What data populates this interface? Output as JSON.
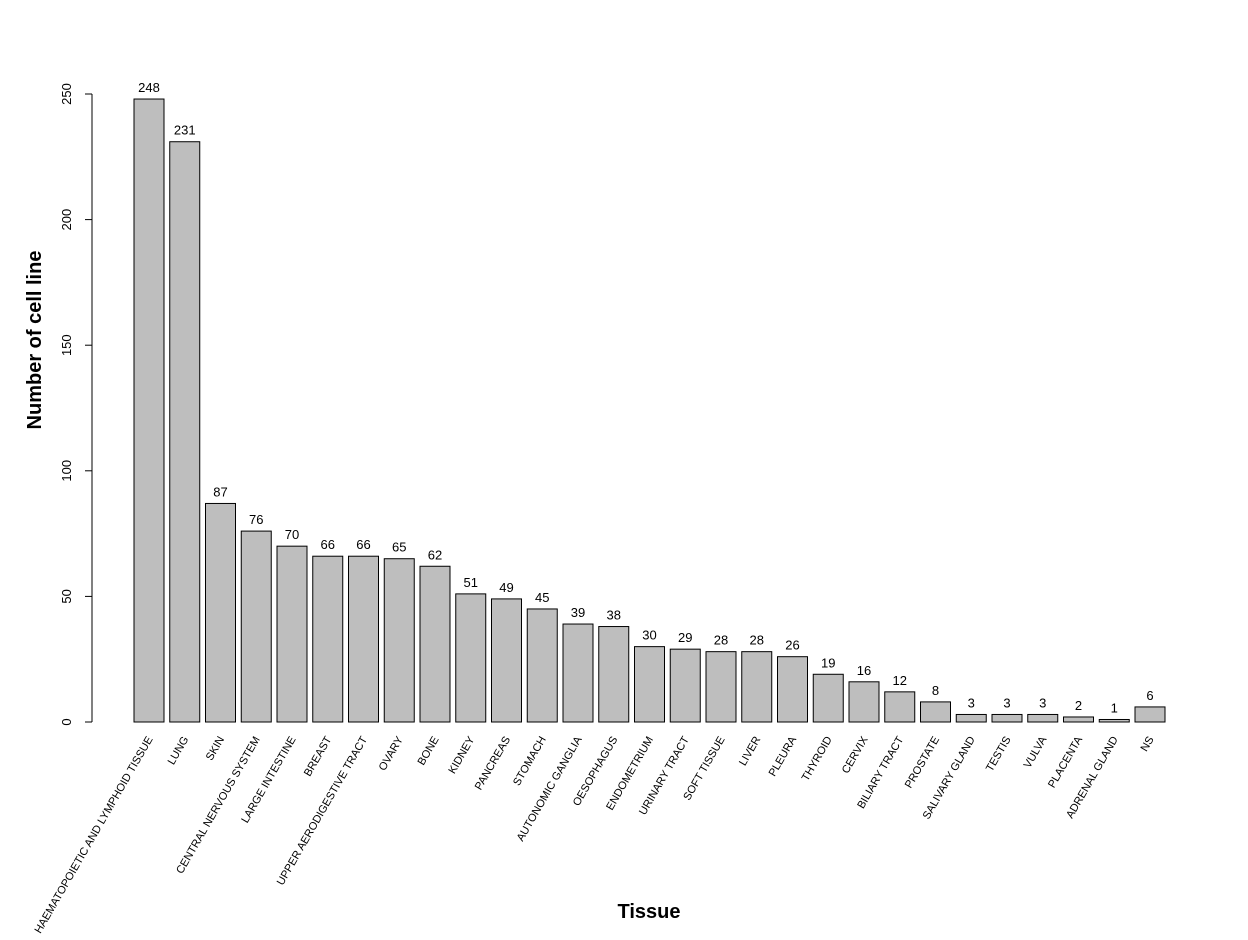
{
  "chart_data": {
    "type": "bar",
    "xlabel": "Tissue",
    "ylabel": "Number of cell line",
    "ylim": [
      0,
      250
    ],
    "yticks": [
      "0",
      "50",
      "100",
      "150",
      "200",
      "250"
    ],
    "grid": false,
    "bar_color": "#bebebe",
    "categories": [
      "HAEMATOPOIETIC AND LYMPHOID TISSUE",
      "LUNG",
      "SKIN",
      "CENTRAL NERVOUS SYSTEM",
      "LARGE INTESTINE",
      "BREAST",
      "UPPER AERODIGESTIVE TRACT",
      "OVARY",
      "BONE",
      "KIDNEY",
      "PANCREAS",
      "STOMACH",
      "AUTONOMIC GANGLIA",
      "OESOPHAGUS",
      "ENDOMETRIUM",
      "URINARY TRACT",
      "SOFT TISSUE",
      "LIVER",
      "PLEURA",
      "THYROID",
      "CERVIX",
      "BILIARY TRACT",
      "PROSTATE",
      "SALIVARY GLAND",
      "TESTIS",
      "VULVA",
      "PLACENTA",
      "ADRENAL GLAND",
      "NS"
    ],
    "values": [
      248,
      231,
      87,
      76,
      70,
      66,
      66,
      65,
      62,
      51,
      49,
      45,
      39,
      38,
      30,
      29,
      28,
      28,
      26,
      19,
      16,
      12,
      8,
      3,
      3,
      3,
      2,
      1,
      6
    ]
  }
}
